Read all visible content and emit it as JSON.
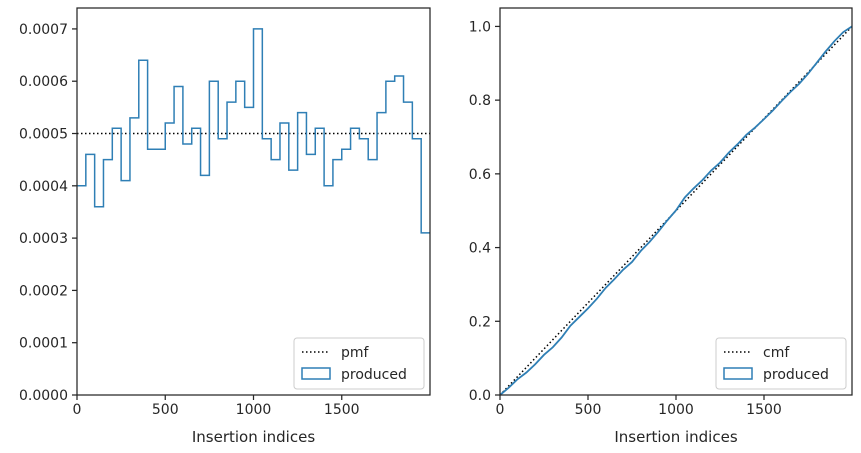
{
  "chart_data": [
    {
      "type": "step",
      "title": "",
      "xlabel": "Insertion indices",
      "ylabel": "",
      "xlim": [
        0,
        2000
      ],
      "ylim": [
        0,
        0.00074
      ],
      "xticks": [
        0,
        500,
        1000,
        1500
      ],
      "xtick_labels": [
        "0",
        "500",
        "1000",
        "1500"
      ],
      "yticks": [
        0,
        0.0001,
        0.0002,
        0.0003,
        0.0004,
        0.0005,
        0.0006,
        0.0007
      ],
      "ytick_labels": [
        "0.0000",
        "0.0001",
        "0.0002",
        "0.0003",
        "0.0004",
        "0.0005",
        "0.0006",
        "0.0007"
      ],
      "grid": false,
      "legend_position": "lower-right",
      "reference": {
        "name": "pmf",
        "value": 0.0005,
        "style": "dotted",
        "color": "#000000"
      },
      "series": [
        {
          "name": "produced",
          "style": "step-histogram",
          "color": "#2f7fb5",
          "bin_width": 50,
          "bin_edges_start": 0,
          "values": [
            0.0004,
            0.00046,
            0.00036,
            0.00045,
            0.00051,
            0.00041,
            0.00053,
            0.00064,
            0.00047,
            0.00047,
            0.00052,
            0.00059,
            0.00048,
            0.00051,
            0.00042,
            0.0006,
            0.00049,
            0.00056,
            0.0006,
            0.00055,
            0.0007,
            0.00049,
            0.00045,
            0.00052,
            0.00043,
            0.00054,
            0.00046,
            0.00051,
            0.0004,
            0.00045,
            0.00047,
            0.00051,
            0.00049,
            0.00045,
            0.00054,
            0.0006,
            0.00061,
            0.00056,
            0.00049,
            0.00031
          ]
        }
      ]
    },
    {
      "type": "line",
      "title": "",
      "xlabel": "Insertion indices",
      "ylabel": "",
      "xlim": [
        0,
        2000
      ],
      "ylim": [
        0,
        1.05
      ],
      "xticks": [
        0,
        500,
        1000,
        1500
      ],
      "xtick_labels": [
        "0",
        "500",
        "1000",
        "1500"
      ],
      "yticks": [
        0,
        0.2,
        0.4,
        0.6,
        0.8,
        1.0
      ],
      "ytick_labels": [
        "0.0",
        "0.2",
        "0.4",
        "0.6",
        "0.8",
        "1.0"
      ],
      "grid": false,
      "legend_position": "lower-right",
      "reference": {
        "name": "cmf",
        "x": [
          0,
          2000
        ],
        "y": [
          0,
          1.0
        ],
        "style": "dotted",
        "color": "#000000"
      },
      "series": [
        {
          "name": "produced",
          "color": "#2f7fb5",
          "x": [
            0,
            50,
            100,
            150,
            200,
            250,
            300,
            350,
            400,
            450,
            500,
            550,
            600,
            650,
            700,
            750,
            800,
            850,
            900,
            950,
            1000,
            1050,
            1100,
            1150,
            1200,
            1250,
            1300,
            1350,
            1400,
            1450,
            1500,
            1550,
            1600,
            1650,
            1700,
            1750,
            1800,
            1850,
            1900,
            1950,
            2000
          ],
          "y": [
            0,
            0.02,
            0.043,
            0.061,
            0.0835,
            0.109,
            0.1295,
            0.156,
            0.188,
            0.2115,
            0.235,
            0.261,
            0.2905,
            0.3145,
            0.34,
            0.361,
            0.391,
            0.4155,
            0.4435,
            0.4735,
            0.501,
            0.536,
            0.5605,
            0.583,
            0.609,
            0.6305,
            0.6575,
            0.6805,
            0.706,
            0.726,
            0.7485,
            0.772,
            0.7975,
            0.822,
            0.8445,
            0.8715,
            0.9015,
            0.932,
            0.96,
            0.9845,
            1.0
          ]
        }
      ]
    }
  ]
}
